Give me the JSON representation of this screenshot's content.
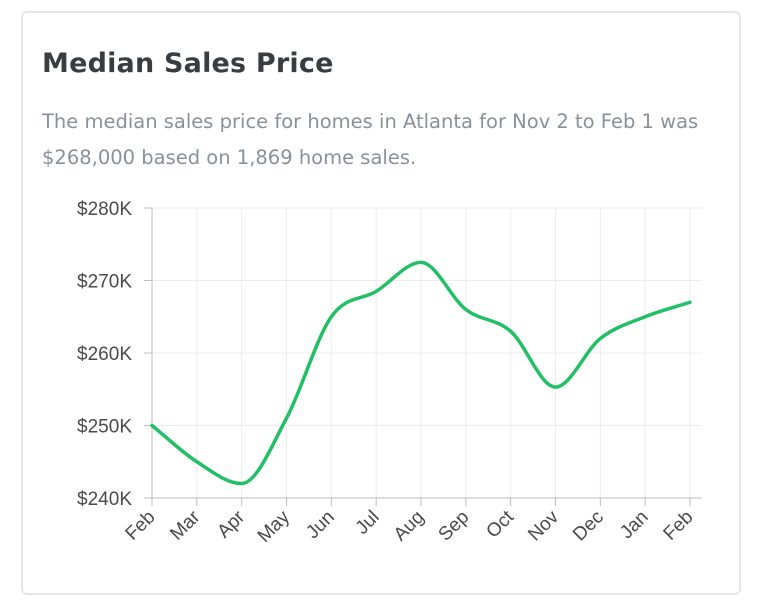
{
  "card": {
    "title": "Median Sales Price",
    "subtitle": "The median sales price for homes in Atlanta for Nov 2 to Feb 1 was $268,000 based on 1,869 home sales."
  },
  "chart_data": {
    "type": "line",
    "title": "Median Sales Price",
    "categories": [
      "Feb",
      "Mar",
      "Apr",
      "May",
      "Jun",
      "Jul",
      "Aug",
      "Sep",
      "Oct",
      "Nov",
      "Dec",
      "Jan",
      "Feb"
    ],
    "series": [
      {
        "values": [
          250,
          245,
          242,
          251,
          265,
          268.5,
          272.5,
          266,
          263,
          255.3,
          262,
          265,
          267
        ],
        "color": "#21c064"
      }
    ],
    "ylim": [
      240,
      280
    ],
    "yticks": [
      240,
      250,
      260,
      270,
      280
    ],
    "ytick_labels": [
      "$240K",
      "$250K",
      "$260K",
      "$270K",
      "$280K"
    ],
    "xlabel": "",
    "ylabel": "",
    "grid": true,
    "legend": "none"
  }
}
